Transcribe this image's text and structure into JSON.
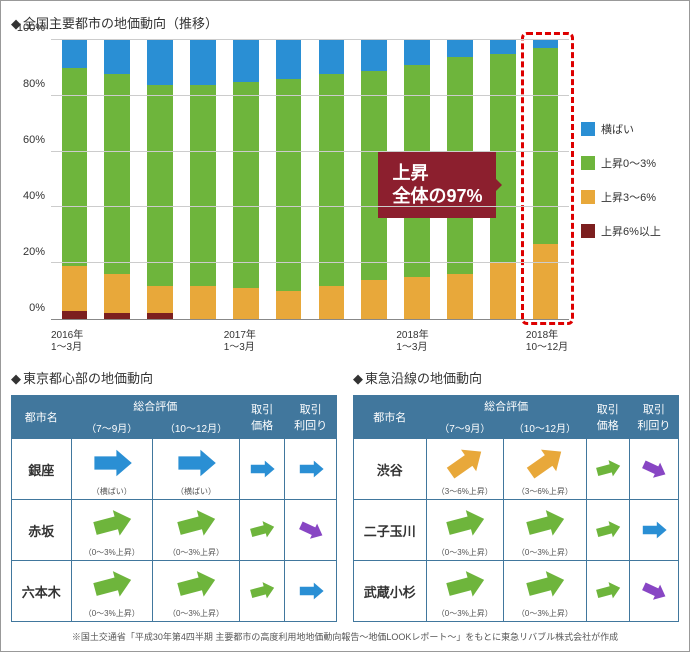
{
  "chart": {
    "title": "全国主要都市の地価動向（推移）",
    "type": "stacked-bar",
    "ylim": [
      0,
      100
    ],
    "ytick_step": 20,
    "yticks": [
      "0%",
      "20%",
      "40%",
      "60%",
      "80%",
      "100%"
    ],
    "colors": {
      "yokobai": "#2a8fd4",
      "up0_3": "#6eb53c",
      "up3_6": "#e8a83a",
      "up6": "#7c1f1f",
      "grid": "#cccccc",
      "axis": "#888888",
      "highlight_border": "#d00000",
      "callout_bg": "#8c1f2e"
    },
    "legend": [
      {
        "label": "横ばい",
        "color": "#2a8fd4"
      },
      {
        "label": "上昇0～3%",
        "color": "#6eb53c"
      },
      {
        "label": "上昇3～6%",
        "color": "#e8a83a"
      },
      {
        "label": "上昇6%以上",
        "color": "#7c1f1f"
      }
    ],
    "series": [
      "up6",
      "up3_6",
      "up0_3",
      "yokobai"
    ],
    "bars": [
      {
        "xlabel": "2016年\n1～3月",
        "up6": 3,
        "up3_6": 16,
        "up0_3": 71,
        "yokobai": 10
      },
      {
        "xlabel": "",
        "up6": 2,
        "up3_6": 14,
        "up0_3": 72,
        "yokobai": 12
      },
      {
        "xlabel": "",
        "up6": 2,
        "up3_6": 10,
        "up0_3": 72,
        "yokobai": 16
      },
      {
        "xlabel": "",
        "up6": 0,
        "up3_6": 12,
        "up0_3": 72,
        "yokobai": 16
      },
      {
        "xlabel": "2017年\n1～3月",
        "up6": 0,
        "up3_6": 11,
        "up0_3": 74,
        "yokobai": 15
      },
      {
        "xlabel": "",
        "up6": 0,
        "up3_6": 10,
        "up0_3": 76,
        "yokobai": 14
      },
      {
        "xlabel": "",
        "up6": 0,
        "up3_6": 12,
        "up0_3": 76,
        "yokobai": 12
      },
      {
        "xlabel": "",
        "up6": 0,
        "up3_6": 14,
        "up0_3": 75,
        "yokobai": 11
      },
      {
        "xlabel": "2018年\n1～3月",
        "up6": 0,
        "up3_6": 15,
        "up0_3": 76,
        "yokobai": 9
      },
      {
        "xlabel": "",
        "up6": 0,
        "up3_6": 16,
        "up0_3": 78,
        "yokobai": 6
      },
      {
        "xlabel": "",
        "up6": 0,
        "up3_6": 20,
        "up0_3": 75,
        "yokobai": 5
      },
      {
        "xlabel": "2018年\n10～12月",
        "up6": 0,
        "up3_6": 27,
        "up0_3": 70,
        "yokobai": 3
      }
    ],
    "highlight_index": 11,
    "callout": {
      "line1": "上昇",
      "line2": "全体の97%"
    }
  },
  "tables": {
    "left": {
      "title": "東京都心部の地価動向",
      "headers": {
        "city": "都市名",
        "eval": "総合評価",
        "sub1": "（7～9月）",
        "sub2": "（10～12月）",
        "price": "取引\n価格",
        "yield": "取引\n利回り"
      },
      "rows": [
        {
          "city": "銀座",
          "e1": {
            "c": "#2a8fd4",
            "a": 0,
            "t": "（横ばい）"
          },
          "e2": {
            "c": "#2a8fd4",
            "a": 0,
            "t": "（横ばい）"
          },
          "p": {
            "c": "#2a8fd4",
            "a": 0
          },
          "y": {
            "c": "#2a8fd4",
            "a": 0
          }
        },
        {
          "city": "赤坂",
          "e1": {
            "c": "#6eb53c",
            "a": 15,
            "t": "（0～3%上昇）"
          },
          "e2": {
            "c": "#6eb53c",
            "a": 15,
            "t": "（0～3%上昇）"
          },
          "p": {
            "c": "#6eb53c",
            "a": 15
          },
          "y": {
            "c": "#8846c4",
            "a": -25
          }
        },
        {
          "city": "六本木",
          "e1": {
            "c": "#6eb53c",
            "a": 15,
            "t": "（0～3%上昇）"
          },
          "e2": {
            "c": "#6eb53c",
            "a": 15,
            "t": "（0～3%上昇）"
          },
          "p": {
            "c": "#6eb53c",
            "a": 15
          },
          "y": {
            "c": "#2a8fd4",
            "a": 0
          }
        }
      ]
    },
    "right": {
      "title": "東急沿線の地価動向",
      "headers": {
        "city": "都市名",
        "eval": "総合評価",
        "sub1": "（7～9月）",
        "sub2": "（10～12月）",
        "price": "取引\n価格",
        "yield": "取引\n利回り"
      },
      "rows": [
        {
          "city": "渋谷",
          "e1": {
            "c": "#e8a83a",
            "a": 35,
            "t": "（3～6%上昇）"
          },
          "e2": {
            "c": "#e8a83a",
            "a": 35,
            "t": "（3～6%上昇）"
          },
          "p": {
            "c": "#6eb53c",
            "a": 15
          },
          "y": {
            "c": "#8846c4",
            "a": -25
          }
        },
        {
          "city": "二子玉川",
          "e1": {
            "c": "#6eb53c",
            "a": 15,
            "t": "（0～3%上昇）"
          },
          "e2": {
            "c": "#6eb53c",
            "a": 15,
            "t": "（0～3%上昇）"
          },
          "p": {
            "c": "#6eb53c",
            "a": 15
          },
          "y": {
            "c": "#2a8fd4",
            "a": 0
          }
        },
        {
          "city": "武蔵小杉",
          "e1": {
            "c": "#6eb53c",
            "a": 15,
            "t": "（0～3%上昇）"
          },
          "e2": {
            "c": "#6eb53c",
            "a": 15,
            "t": "（0～3%上昇）"
          },
          "p": {
            "c": "#6eb53c",
            "a": 15
          },
          "y": {
            "c": "#8846c4",
            "a": -25
          }
        }
      ]
    }
  },
  "footnote": "※国土交通省「平成30年第4四半期 主要都市の高度利用地地価動向報告～地価LOOKレポート～」をもとに東急リバブル株式会社が作成"
}
